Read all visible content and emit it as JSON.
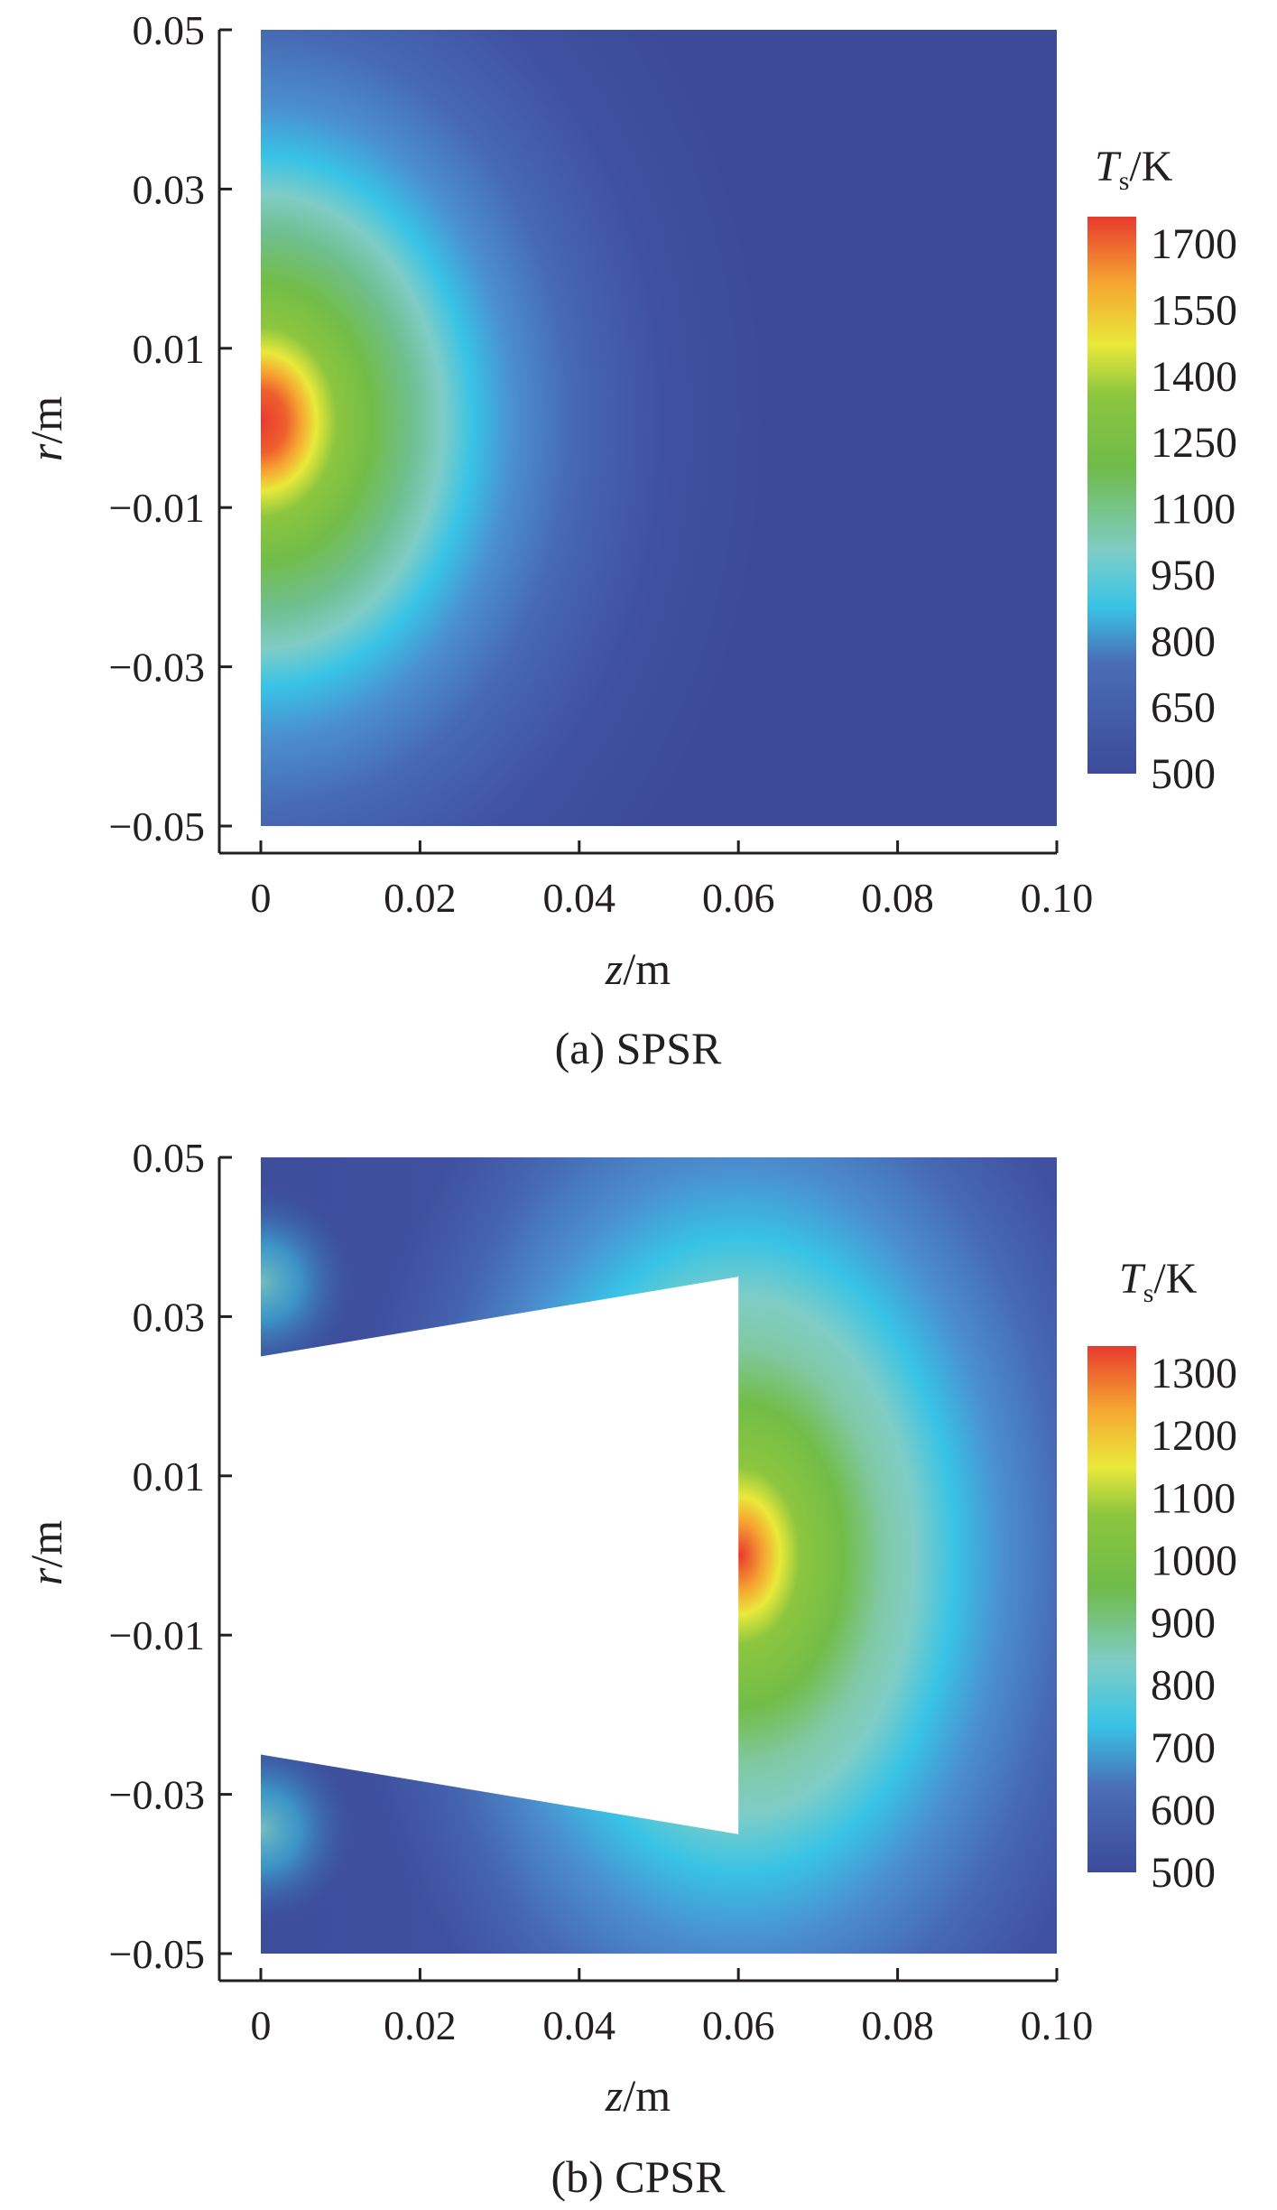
{
  "chart_data": [
    {
      "type": "heatmap",
      "panel": "a",
      "caption": "(a) SPSR",
      "xlabel": "z/m",
      "ylabel": "r/m",
      "x_ticks": [
        "0",
        "0.02",
        "0.04",
        "0.06",
        "0.08",
        "0.10"
      ],
      "y_ticks": [
        "0.05",
        "0.03",
        "0.01",
        "−0.01",
        "−0.03",
        "−0.05"
      ],
      "xlim": [
        0,
        0.1
      ],
      "ylim": [
        -0.05,
        0.05
      ],
      "colorbar": {
        "title": "Ts/K",
        "min": 500,
        "max": 1750,
        "ticks": [
          "1700",
          "1550",
          "1400",
          "1250",
          "1100",
          "950",
          "800",
          "650",
          "500"
        ]
      },
      "field": {
        "description_values": "peak temperature ~1750 K at z=0, r=0; decays radially from origin",
        "peak_location": [
          0,
          0
        ],
        "peak_value": 1750,
        "background_value": 560
      },
      "geometry": {
        "obstacle": "none"
      }
    },
    {
      "type": "heatmap",
      "panel": "b",
      "caption": "(b) CPSR",
      "xlabel": "z/m",
      "ylabel": "r/m",
      "x_ticks": [
        "0",
        "0.02",
        "0.04",
        "0.06",
        "0.08",
        "0.10"
      ],
      "y_ticks": [
        "0.05",
        "0.03",
        "0.01",
        "−0.01",
        "−0.03",
        "−0.05"
      ],
      "xlim": [
        0,
        0.1
      ],
      "ylim": [
        -0.05,
        0.05
      ],
      "colorbar": {
        "title": "Ts/K",
        "min": 500,
        "max": 1300,
        "ticks": [
          "1300",
          "1200",
          "1100",
          "1000",
          "900",
          "800",
          "700",
          "600",
          "500"
        ]
      },
      "field": {
        "peak_location": [
          0.06,
          0
        ],
        "peak_value": 1280,
        "background_value": 560
      },
      "geometry": {
        "obstacle": "trapezoid",
        "vertices_data_units": [
          [
            0,
            0.025
          ],
          [
            0.06,
            0.035
          ],
          [
            0.06,
            -0.035
          ],
          [
            0,
            -0.025
          ]
        ]
      }
    }
  ],
  "colors": {
    "axis": "#231f20",
    "colormap": [
      "#3b4b9a",
      "#3f5aa6",
      "#4a8fd0",
      "#34c3e6",
      "#7fcfc4",
      "#6fbb4a",
      "#8cc63f",
      "#e6e839",
      "#f7a530",
      "#e93d2e"
    ]
  },
  "labels": {
    "a": {
      "r_italic": "r",
      "r_unit": "/m",
      "z_italic": "z",
      "z_unit": "/m",
      "ts_T": "T",
      "ts_sub": "s",
      "ts_unit": "/K",
      "caption": "(a) SPSR"
    },
    "b": {
      "r_italic": "r",
      "r_unit": "/m",
      "z_italic": "z",
      "z_unit": "/m",
      "ts_T": "T",
      "ts_sub": "s",
      "ts_unit": "/K",
      "caption": "(b) CPSR"
    }
  }
}
